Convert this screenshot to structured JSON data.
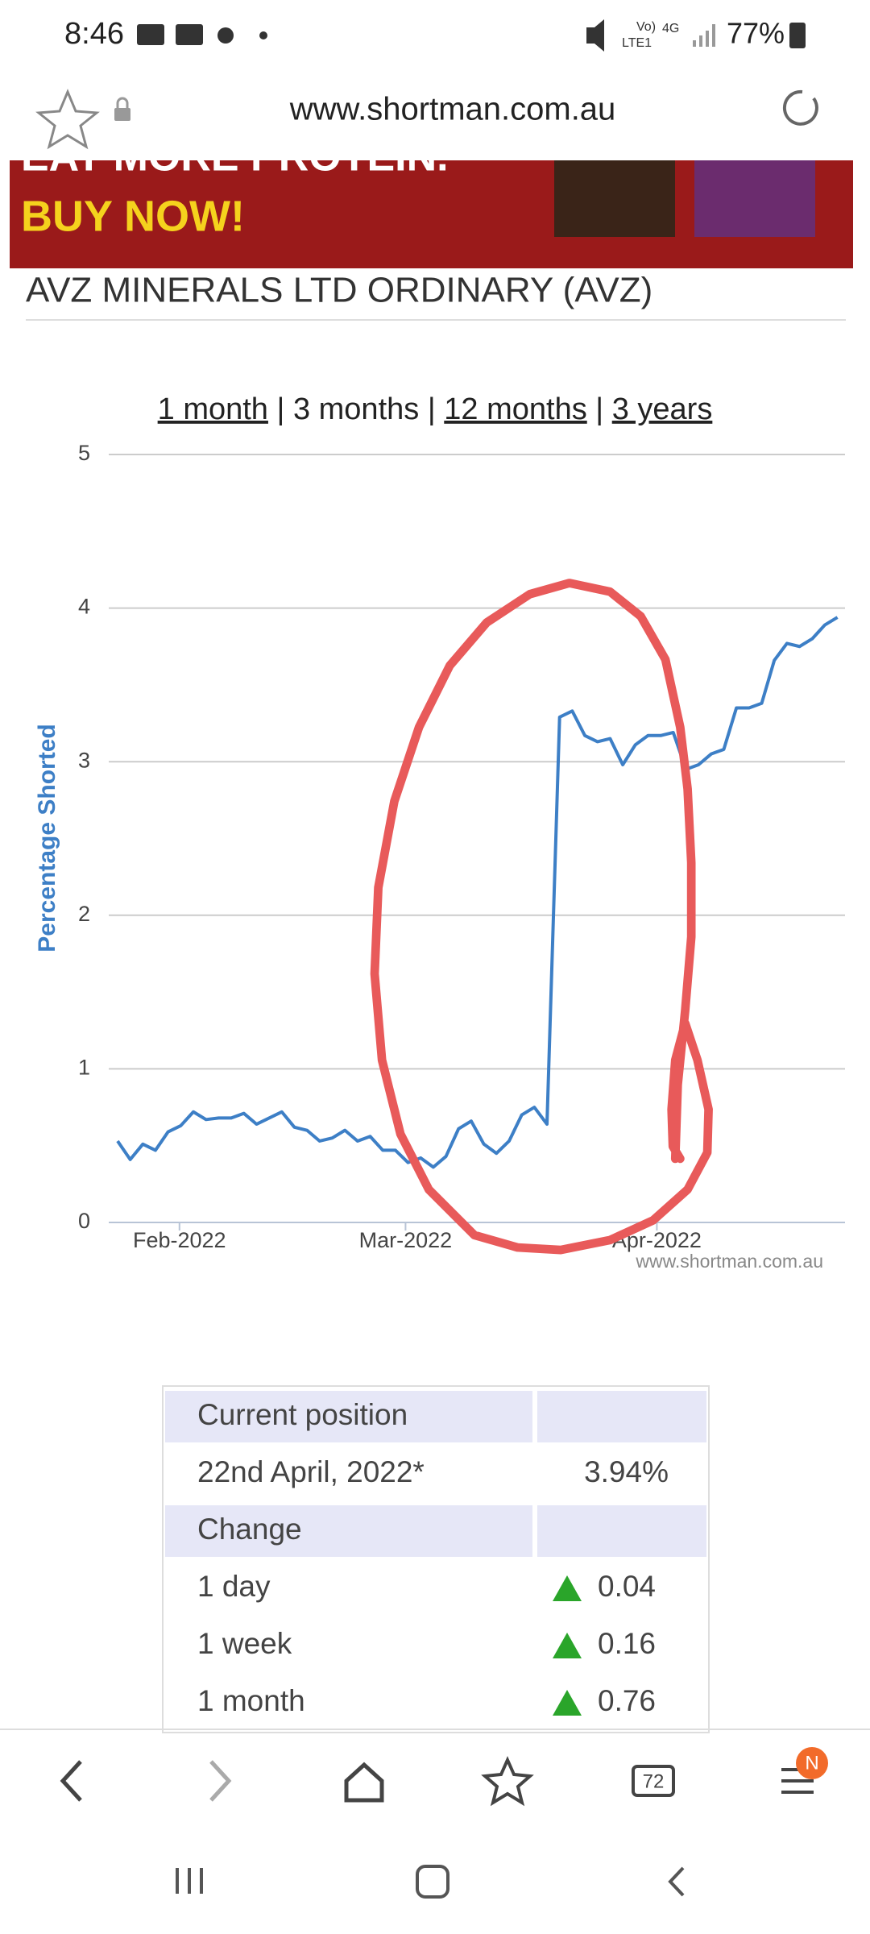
{
  "status_bar": {
    "time": "8:46",
    "network": [
      "Vo)",
      "LTE1",
      "4G"
    ],
    "battery": "77%"
  },
  "browser": {
    "url": "www.shortman.com.au",
    "tab_count": "72",
    "badge": "N"
  },
  "banner": {
    "line1": "EAT MORE PROTEIN.",
    "line2": "BUY NOW!"
  },
  "page": {
    "title": "AVZ MINERALS LTD ORDINARY (AVZ)",
    "periods": [
      "1 month",
      "3 months",
      "12 months",
      "3 years"
    ]
  },
  "chart_data": {
    "type": "line",
    "y_label": "Percentage Shorted",
    "watermark": "www.shortman.com.au",
    "color": "#3d7fc6",
    "values": [
      0.53,
      0.41,
      0.51,
      0.47,
      0.59,
      0.63,
      0.72,
      0.67,
      0.68,
      0.68,
      0.71,
      0.64,
      0.68,
      0.72,
      0.62,
      0.6,
      0.53,
      0.55,
      0.6,
      0.53,
      0.56,
      0.47,
      0.47,
      0.39,
      0.42,
      0.36,
      0.43,
      0.61,
      0.66,
      0.51,
      0.45,
      0.53,
      0.7,
      0.75,
      0.64,
      3.29,
      3.33,
      3.17,
      3.13,
      3.15,
      2.98,
      3.11,
      3.17,
      3.17,
      3.19,
      2.95,
      2.98,
      3.05,
      3.08,
      3.35,
      3.35,
      3.38,
      3.66,
      3.77,
      3.75,
      3.8,
      3.89,
      3.94
    ],
    "xlim": [
      -0.7,
      57.6
    ],
    "xticks": [
      {
        "value": 4.9,
        "label": "Feb-2022"
      },
      {
        "value": 22.8,
        "label": "Mar-2022"
      },
      {
        "value": 42.7,
        "label": "Apr-2022"
      }
    ],
    "ylim": [
      0,
      5
    ],
    "yticks": [
      0,
      1,
      2,
      3,
      4,
      5
    ],
    "grid": true
  },
  "table": {
    "rows": [
      [
        "Current position",
        ""
      ],
      [
        "22nd April, 2022*",
        "3.94%"
      ],
      [
        "Change",
        ""
      ],
      [
        "1 day",
        "0.04"
      ],
      [
        "1 week",
        "0.16"
      ],
      [
        "1 month",
        "0.76"
      ]
    ]
  }
}
